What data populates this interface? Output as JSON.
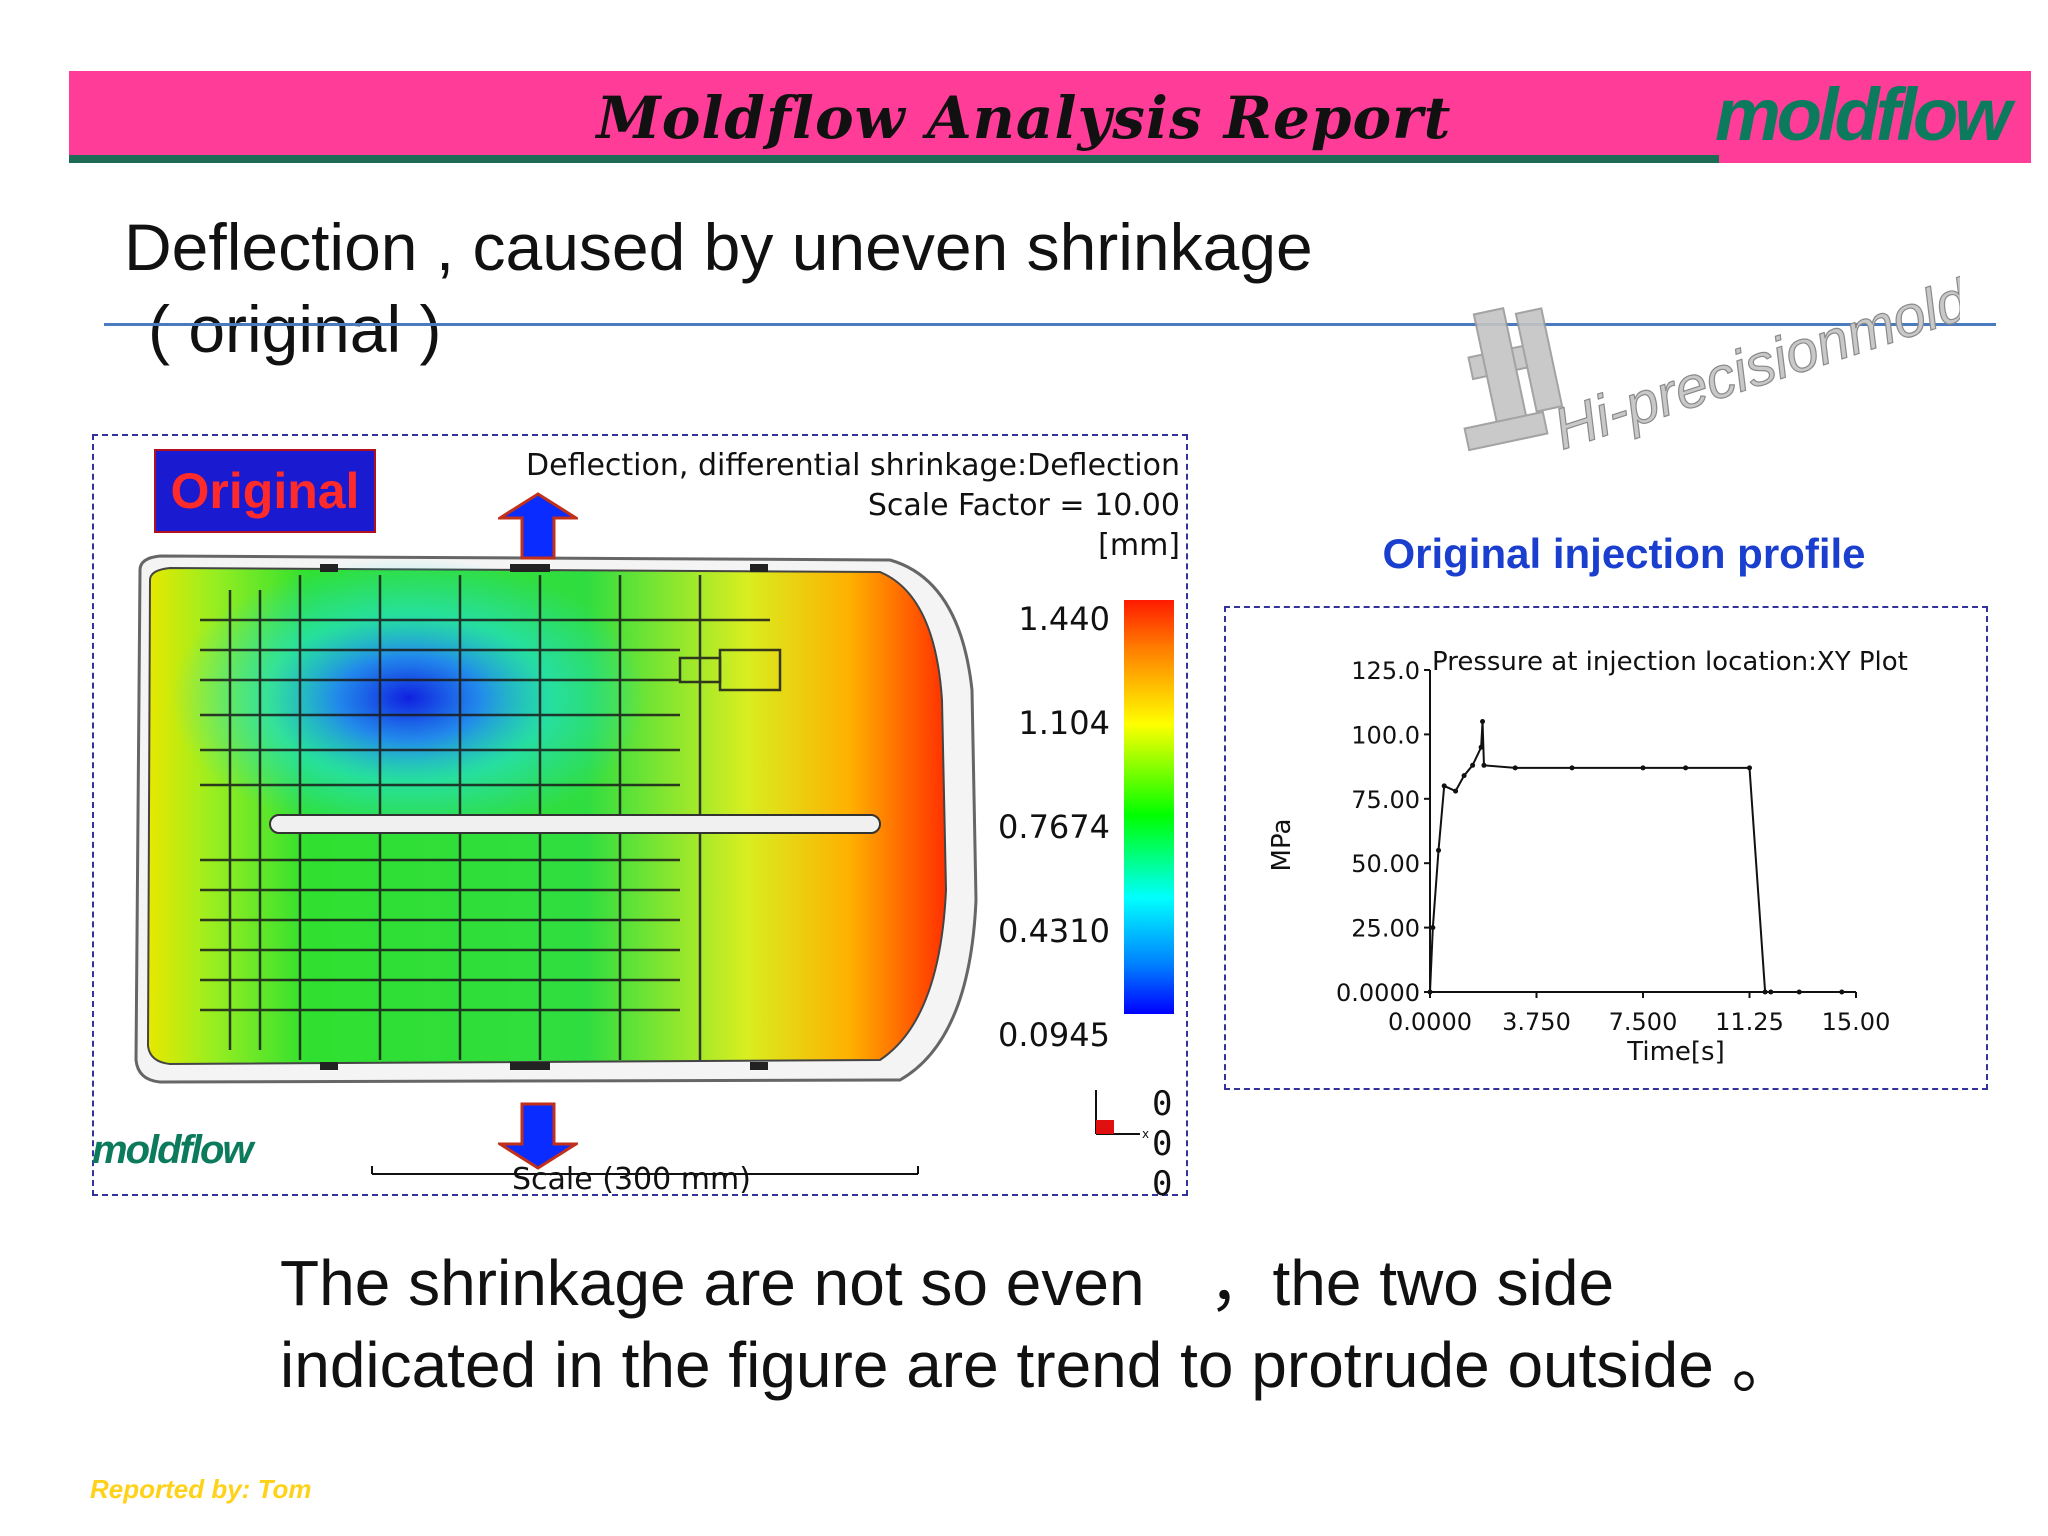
{
  "header": {
    "title": "Moldflow Analysis Report",
    "logo_text": "moldflow"
  },
  "slide": {
    "title_line1": "Deflection , caused by uneven shrinkage",
    "title_line2": "( original )",
    "watermark_text": "Hi-precisionmold.com"
  },
  "deflection_plot": {
    "badge": "Original",
    "title": "Deflection, differential shrinkage:Deflection",
    "scale_factor": "Scale Factor = 10.00",
    "unit": "[mm]",
    "legend_values": [
      "1.440",
      "1.104",
      "0.7674",
      "0.4310",
      "0.0945"
    ],
    "scale_label": "Scale (300 mm)",
    "triad_values": [
      "0",
      "0",
      "0"
    ],
    "logo_text": "moldflow",
    "colors": {
      "max": "#ff1a00",
      "mid": "#00ff00",
      "min": "#0000ff",
      "arrow": "#0a2cff"
    }
  },
  "profile": {
    "heading": "Original injection profile"
  },
  "chart_data": {
    "type": "line",
    "title": "Pressure at injection location:XY Plot",
    "xlabel": "Time[s]",
    "ylabel": "MPa",
    "xlim": [
      0,
      15
    ],
    "ylim": [
      0,
      125
    ],
    "x_ticks": [
      "0.0000",
      "3.750",
      "7.500",
      "11.25",
      "15.00"
    ],
    "y_ticks": [
      "0.0000",
      "25.00",
      "50.00",
      "75.00",
      "100.0",
      "125.0"
    ],
    "series": [
      {
        "x": [
          0,
          0.1,
          0.3,
          0.5,
          0.9,
          1.2,
          1.5,
          1.8,
          1.85,
          1.9,
          3,
          5,
          7.5,
          9,
          11.25,
          11.8,
          12,
          13,
          14.5
        ],
        "y": [
          0,
          25,
          55,
          80,
          78,
          84,
          88,
          95,
          105,
          88,
          87,
          87,
          87,
          87,
          87,
          0,
          0,
          0,
          0
        ]
      }
    ]
  },
  "summary": {
    "line1": "The shrinkage are not so even　，the two side",
    "line2": "indicated in the figure are trend to protrude outside 。"
  },
  "footer": {
    "reported_by": "Reported by: Tom"
  }
}
